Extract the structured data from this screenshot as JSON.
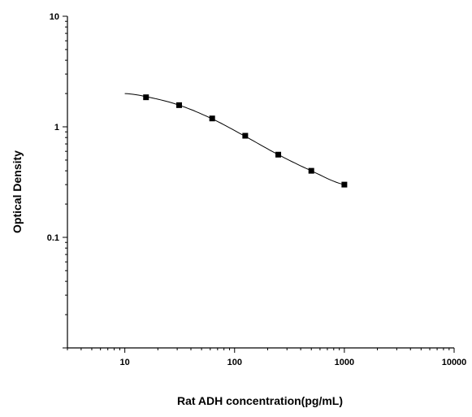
{
  "chart_data": {
    "type": "scatter",
    "title": "",
    "xlabel": "Rat ADH concentration(pg/mL)",
    "ylabel": "Optical Density",
    "x_scale": "log",
    "y_scale": "log",
    "xlim": [
      3,
      10000
    ],
    "ylim": [
      0.01,
      10
    ],
    "x_ticks": [
      "10",
      "100",
      "1000",
      "10000"
    ],
    "y_ticks": [
      "0.1",
      "1",
      "10"
    ],
    "grid": false,
    "legend": "none",
    "series": [
      {
        "points": [
          {
            "x": 15.6,
            "y": 1.85
          },
          {
            "x": 31.25,
            "y": 1.57
          },
          {
            "x": 62.5,
            "y": 1.19
          },
          {
            "x": 125,
            "y": 0.83
          },
          {
            "x": 250,
            "y": 0.56
          },
          {
            "x": 500,
            "y": 0.4
          },
          {
            "x": 1000,
            "y": 0.3
          }
        ],
        "fit_curve": [
          {
            "x": 10,
            "y": 2.0
          },
          {
            "x": 15.6,
            "y": 1.87
          },
          {
            "x": 31.25,
            "y": 1.57
          },
          {
            "x": 62.5,
            "y": 1.18
          },
          {
            "x": 125,
            "y": 0.82
          },
          {
            "x": 250,
            "y": 0.56
          },
          {
            "x": 500,
            "y": 0.4
          },
          {
            "x": 1000,
            "y": 0.3
          }
        ],
        "marker": "square",
        "color": "#000000"
      }
    ]
  }
}
